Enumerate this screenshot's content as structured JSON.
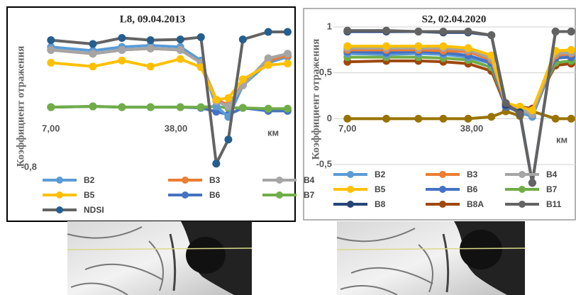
{
  "chart_data": [
    {
      "type": "line",
      "title": "L8, 09.04.2013",
      "y_label": "Коэффициент отражения",
      "x_label": "км",
      "xlim": [
        1.4,
        66.5
      ],
      "ylim": [
        -0.8,
        1.0
      ],
      "xticks": [
        {
          "value": 7,
          "label": "7,00"
        },
        {
          "value": 38,
          "label": "38,00"
        }
      ],
      "yticks": [
        {
          "value": -0.8,
          "label": "-0,8"
        }
      ],
      "grid": false,
      "x": [
        7,
        17.4,
        24.6,
        31.7,
        39.1,
        44.2,
        48.0,
        51.0,
        54.6,
        60.9,
        65.7
      ],
      "series": [
        {
          "name": "B6",
          "color": "#4472c4",
          "values": [
            0.0,
            0.01,
            0.0,
            0.0,
            0.0,
            -0.01,
            -0.06,
            -0.1,
            -0.01,
            -0.05,
            -0.05
          ]
        },
        {
          "name": "B7",
          "color": "#70ad47",
          "values": [
            0.0,
            0.01,
            0.0,
            0.0,
            0.0,
            0.0,
            0.01,
            -0.01,
            -0.01,
            -0.02,
            -0.02
          ]
        },
        {
          "name": "B2",
          "color": "#5b9bd5",
          "values": [
            0.8,
            0.75,
            0.8,
            0.82,
            0.8,
            0.62,
            0.01,
            -0.13,
            0.29,
            0.59,
            0.67
          ]
        },
        {
          "name": "B3",
          "color": "#ed7d31",
          "values": [
            0.76,
            0.71,
            0.76,
            0.78,
            0.76,
            0.59,
            0.1,
            0.03,
            0.31,
            0.62,
            0.69
          ]
        },
        {
          "name": "B4",
          "color": "#a5a5a5",
          "values": [
            0.76,
            0.71,
            0.76,
            0.78,
            0.76,
            0.59,
            0.08,
            0.01,
            0.29,
            0.65,
            0.71
          ]
        },
        {
          "name": "B5",
          "color": "#ffc000",
          "values": [
            0.59,
            0.54,
            0.62,
            0.54,
            0.64,
            0.53,
            0.1,
            0.12,
            0.37,
            0.56,
            0.58
          ]
        },
        {
          "name": "NDSI",
          "color": "#636363",
          "marker_color": "#255e91",
          "values": [
            0.89,
            0.84,
            0.92,
            0.89,
            0.9,
            0.93,
            -0.75,
            -0.43,
            0.9,
            1.0,
            1.0
          ]
        }
      ]
    },
    {
      "type": "line",
      "title": "S2, 02.04.2020",
      "y_label": "Коэффициент отражения",
      "x_label": "км",
      "xlim": [
        3.5,
        64
      ],
      "ylim": [
        -0.5,
        1.0
      ],
      "xticks": [
        {
          "value": 7,
          "label": "7,00"
        },
        {
          "value": 38,
          "label": "38,00"
        }
      ],
      "yticks": [
        1,
        {
          "value": 0.5,
          "label": "0,5"
        },
        0,
        {
          "value": -0.5,
          "label": "-0,5"
        }
      ],
      "grid": true,
      "x": [
        7,
        16.7,
        24.7,
        30.9,
        37.1,
        42.9,
        46.5,
        50.0,
        53.1,
        58.9,
        62.8
      ],
      "series": [
        {
          "color": "#997300",
          "values": [
            0,
            0,
            0,
            0,
            0,
            0.02,
            0.08,
            0.03,
            0.08,
            0,
            0
          ]
        },
        {
          "name": "B8A",
          "color": "#9e480e",
          "values": [
            0.62,
            0.63,
            0.63,
            0.62,
            0.6,
            0.52,
            0.13,
            0.13,
            0.11,
            0.58,
            0.6
          ]
        },
        {
          "name": "B7",
          "color": "#70ad47",
          "values": [
            0.67,
            0.67,
            0.67,
            0.66,
            0.64,
            0.56,
            0.15,
            0.12,
            0.09,
            0.61,
            0.63
          ]
        },
        {
          "name": "B2",
          "color": "#5b9bd5",
          "values": [
            0.71,
            0.7,
            0.71,
            0.7,
            0.67,
            0.6,
            0.13,
            0.07,
            0.02,
            0.67,
            0.69
          ]
        },
        {
          "name": "B6",
          "color": "#4472c4",
          "values": [
            0.73,
            0.72,
            0.73,
            0.72,
            0.69,
            0.61,
            0.13,
            0.09,
            0.05,
            0.66,
            0.67
          ]
        },
        {
          "name": "B3",
          "color": "#ed7d31",
          "values": [
            0.75,
            0.75,
            0.75,
            0.74,
            0.73,
            0.64,
            0.15,
            0.09,
            0.05,
            0.69,
            0.71
          ]
        },
        {
          "name": "B4",
          "color": "#a5a5a5",
          "values": [
            0.77,
            0.77,
            0.77,
            0.77,
            0.75,
            0.66,
            0.15,
            0.09,
            0.05,
            0.71,
            0.72
          ]
        },
        {
          "name": "B5",
          "color": "#ffc000",
          "values": [
            0.79,
            0.79,
            0.79,
            0.79,
            0.77,
            0.69,
            0.17,
            0.13,
            0.09,
            0.74,
            0.75
          ]
        },
        {
          "name": "B8",
          "color": "#264478",
          "values": [
            0.95,
            0.95,
            0.95,
            0.94,
            0.94,
            0.91,
            0.15,
            0.07,
            -0.7,
            0.95,
            0.95
          ]
        },
        {
          "name": "B11",
          "color": "#636363",
          "values": [
            0.96,
            0.96,
            0.95,
            0.95,
            0.95,
            0.91,
            0.17,
            0.05,
            -0.7,
            0.95,
            0.95
          ]
        }
      ]
    }
  ]
}
